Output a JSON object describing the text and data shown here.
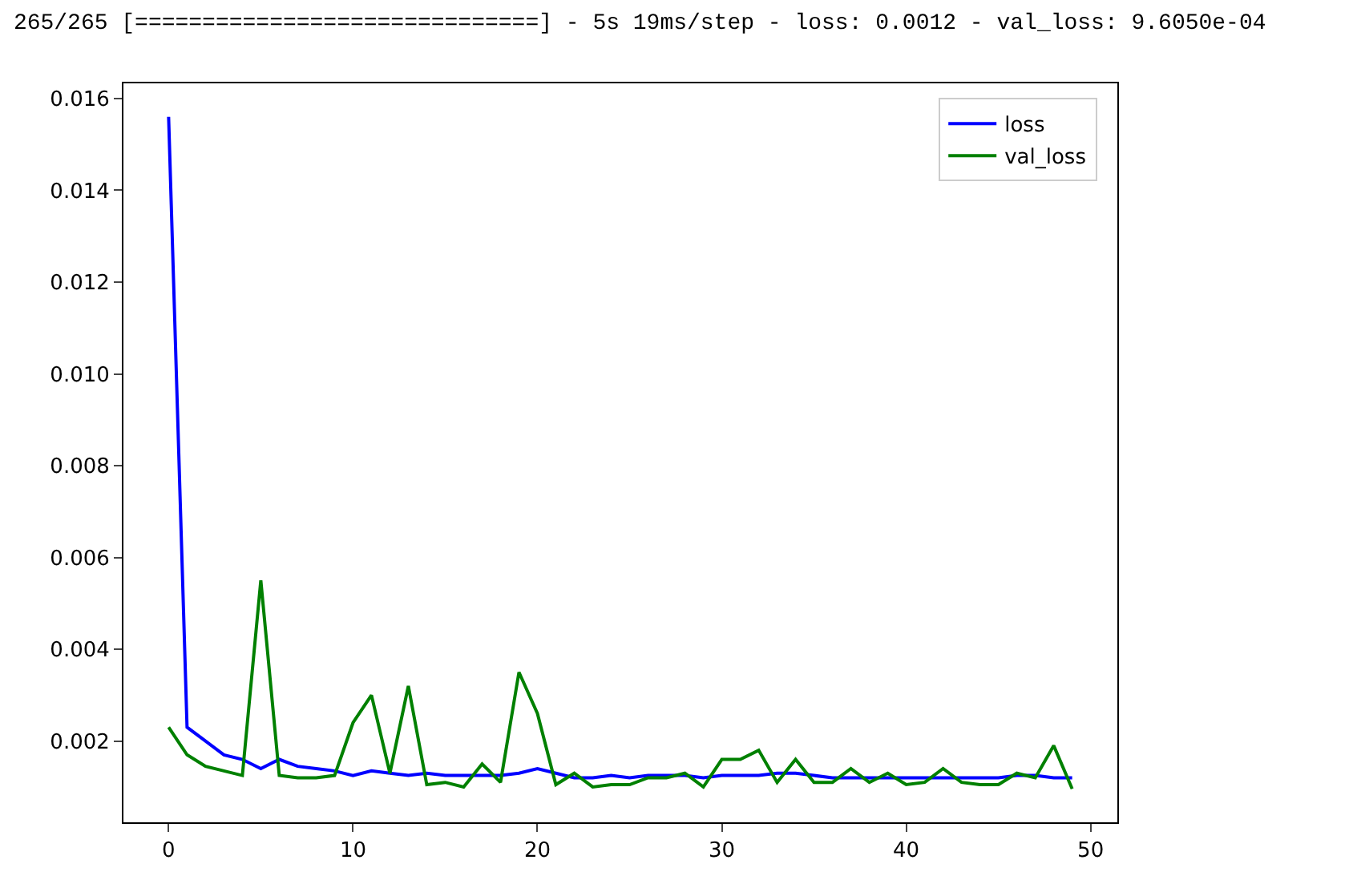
{
  "chart_data": {
    "type": "line",
    "title": "265/265 [==============================] - 5s 19ms/step - loss: 0.0012 - val_loss: 9.6050e-04",
    "x": [
      0,
      1,
      2,
      3,
      4,
      5,
      6,
      7,
      8,
      9,
      10,
      11,
      12,
      13,
      14,
      15,
      16,
      17,
      18,
      19,
      20,
      21,
      22,
      23,
      24,
      25,
      26,
      27,
      28,
      29,
      30,
      31,
      32,
      33,
      34,
      35,
      36,
      37,
      38,
      39,
      40,
      41,
      42,
      43,
      44,
      45,
      46,
      47,
      48,
      49
    ],
    "series": [
      {
        "name": "loss",
        "color": "#0000ff",
        "values": [
          0.0156,
          0.0023,
          0.002,
          0.0017,
          0.0016,
          0.0014,
          0.0016,
          0.00145,
          0.0014,
          0.00135,
          0.00125,
          0.00135,
          0.0013,
          0.00125,
          0.0013,
          0.00125,
          0.00125,
          0.00125,
          0.00125,
          0.0013,
          0.0014,
          0.0013,
          0.0012,
          0.0012,
          0.00125,
          0.0012,
          0.00125,
          0.00125,
          0.00125,
          0.0012,
          0.00125,
          0.00125,
          0.00125,
          0.0013,
          0.0013,
          0.00125,
          0.0012,
          0.0012,
          0.0012,
          0.0012,
          0.0012,
          0.0012,
          0.0012,
          0.0012,
          0.0012,
          0.0012,
          0.00125,
          0.00125,
          0.0012,
          0.0012
        ]
      },
      {
        "name": "val_loss",
        "color": "#008000",
        "values": [
          0.0023,
          0.0017,
          0.00145,
          0.00135,
          0.00125,
          0.0055,
          0.00125,
          0.0012,
          0.0012,
          0.00125,
          0.0024,
          0.003,
          0.0013,
          0.0032,
          0.00105,
          0.0011,
          0.001,
          0.0015,
          0.0011,
          0.0035,
          0.0026,
          0.00105,
          0.0013,
          0.001,
          0.00105,
          0.00105,
          0.0012,
          0.0012,
          0.0013,
          0.001,
          0.0016,
          0.0016,
          0.0018,
          0.0011,
          0.0016,
          0.0011,
          0.0011,
          0.0014,
          0.0011,
          0.0013,
          0.00105,
          0.0011,
          0.0014,
          0.0011,
          0.00105,
          0.00105,
          0.0013,
          0.0012,
          0.0019,
          0.00096
        ]
      }
    ],
    "xlim": [
      -2.45,
      51.45
    ],
    "xticks": [
      0,
      10,
      20,
      30,
      40,
      50
    ],
    "ylim": [
      0.00023,
      0.01633
    ],
    "yticks": [
      {
        "value": 0.002,
        "label": "0.002"
      },
      {
        "value": 0.004,
        "label": "0.004"
      },
      {
        "value": 0.006,
        "label": "0.006"
      },
      {
        "value": 0.008,
        "label": "0.008"
      },
      {
        "value": 0.01,
        "label": "0.010"
      },
      {
        "value": 0.012,
        "label": "0.012"
      },
      {
        "value": 0.014,
        "label": "0.014"
      },
      {
        "value": 0.016,
        "label": "0.016"
      }
    ],
    "grid": false,
    "legend": "top right",
    "marker": "none",
    "line_style": "solid"
  }
}
